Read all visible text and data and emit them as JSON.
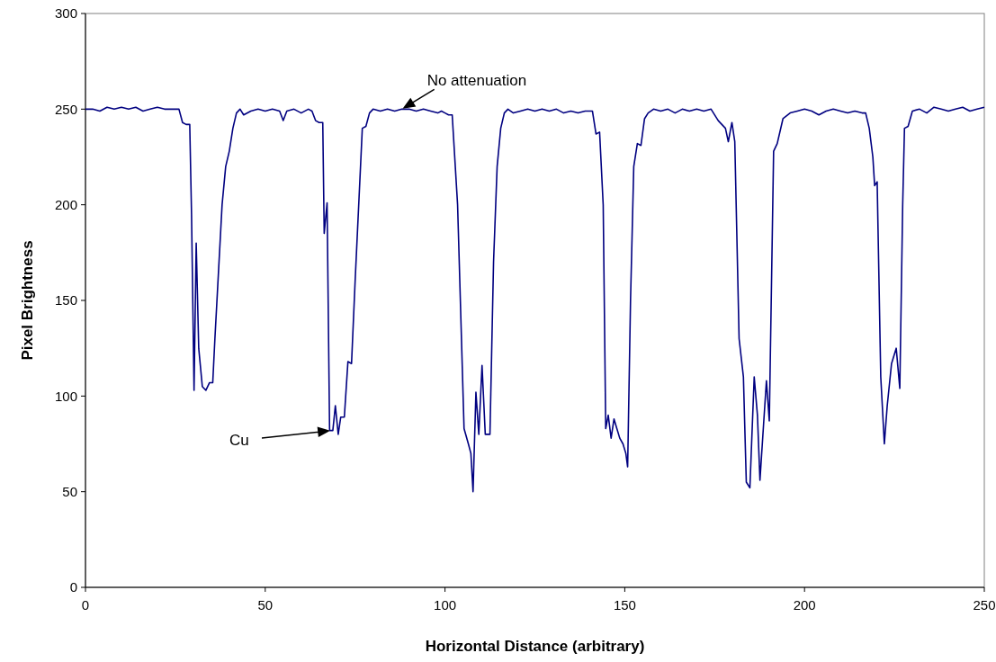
{
  "chart_data": {
    "type": "line",
    "xlabel": "Horizontal Distance (arbitrary)",
    "ylabel": "Pixel Brightness",
    "xlim": [
      0,
      250
    ],
    "ylim": [
      0,
      300
    ],
    "xticks": [
      0,
      50,
      100,
      150,
      200,
      250
    ],
    "yticks": [
      0,
      50,
      100,
      150,
      200,
      250,
      300
    ],
    "grid": false,
    "marker": "none",
    "line_style": "solid",
    "annotations": [
      {
        "text": "No attenuation",
        "x": 88,
        "y": 250
      },
      "Cu"
    ],
    "series": [
      {
        "color": "#000080",
        "x": [
          0,
          2,
          4,
          6,
          8,
          10,
          12,
          14,
          16,
          18,
          20,
          22,
          24,
          26,
          27,
          28,
          29,
          29.5,
          30.2,
          30.8,
          31.5,
          32.5,
          33.5,
          34.5,
          35.4,
          36,
          37,
          38,
          39,
          40,
          41,
          42,
          43,
          44,
          46,
          48,
          50,
          52,
          54,
          55,
          56,
          58,
          60,
          62,
          63,
          64,
          65,
          66,
          66.4,
          67.2,
          67.9,
          68.8,
          69.5,
          70.3,
          71,
          72,
          73,
          74,
          75,
          76,
          77,
          78,
          79,
          80,
          82,
          84,
          86,
          88,
          90,
          92,
          94,
          96,
          98,
          99,
          100,
          101,
          102,
          103.5,
          105.3,
          106.5,
          107.2,
          107.8,
          108.6,
          109.4,
          110.3,
          111.2,
          112.5,
          113.5,
          114.5,
          115.5,
          116.5,
          117.5,
          119,
          121,
          123,
          125,
          127,
          129,
          131,
          133,
          135,
          137,
          139,
          141,
          142,
          143,
          144,
          144.7,
          145.4,
          146.2,
          147,
          147.8,
          148.6,
          149.5,
          150.3,
          150.8,
          151.6,
          152.5,
          153.5,
          154.5,
          155.5,
          156.5,
          158,
          160,
          162,
          164,
          166,
          168,
          170,
          172,
          174,
          176,
          178,
          178.8,
          179.8,
          180.6,
          181.8,
          183,
          183.8,
          184.8,
          186,
          186.9,
          187.6,
          188.6,
          189.4,
          190.2,
          191.4,
          192.4,
          194,
          196,
          198,
          200,
          202,
          204,
          206,
          208,
          210,
          212,
          214,
          216,
          217,
          218,
          219,
          219.5,
          220.2,
          221.2,
          222.2,
          223,
          224.2,
          225.5,
          226.5,
          227.3,
          227.8,
          228.8,
          230,
          232,
          234,
          236,
          238,
          240,
          242,
          244,
          246,
          248,
          250
        ],
        "values": [
          250,
          250,
          249,
          251,
          250,
          251,
          250,
          251,
          249,
          250,
          251,
          250,
          250,
          250,
          243,
          242,
          242,
          195,
          103,
          180,
          125,
          105,
          103,
          107,
          107,
          130,
          165,
          200,
          220,
          228,
          240,
          248,
          250,
          247,
          249,
          250,
          249,
          250,
          249,
          244,
          249,
          250,
          248,
          250,
          249,
          244,
          243,
          243,
          185,
          201,
          82,
          82,
          95,
          80,
          89,
          89,
          118,
          117,
          160,
          200,
          240,
          241,
          248,
          250,
          249,
          250,
          249,
          250,
          250,
          249,
          250,
          249,
          248,
          249,
          248,
          247,
          247,
          200,
          83,
          75,
          70,
          50,
          102,
          80,
          116,
          80,
          80,
          170,
          220,
          240,
          248,
          250,
          248,
          249,
          250,
          249,
          250,
          249,
          250,
          248,
          249,
          248,
          249,
          249,
          237,
          238,
          200,
          83,
          90,
          78,
          88,
          83,
          78,
          75,
          70,
          63,
          150,
          220,
          232,
          231,
          245,
          248,
          250,
          249,
          250,
          248,
          250,
          249,
          250,
          249,
          250,
          244,
          240,
          233,
          243,
          233,
          130,
          110,
          55,
          52,
          110,
          90,
          56,
          85,
          108,
          87,
          228,
          232,
          245,
          248,
          249,
          250,
          249,
          247,
          249,
          250,
          249,
          248,
          249,
          248,
          248,
          240,
          225,
          210,
          212,
          110,
          75,
          95,
          117,
          125,
          104,
          200,
          240,
          241,
          249,
          250,
          248,
          251,
          250,
          249,
          250,
          251,
          249,
          250,
          251
        ]
      }
    ]
  }
}
